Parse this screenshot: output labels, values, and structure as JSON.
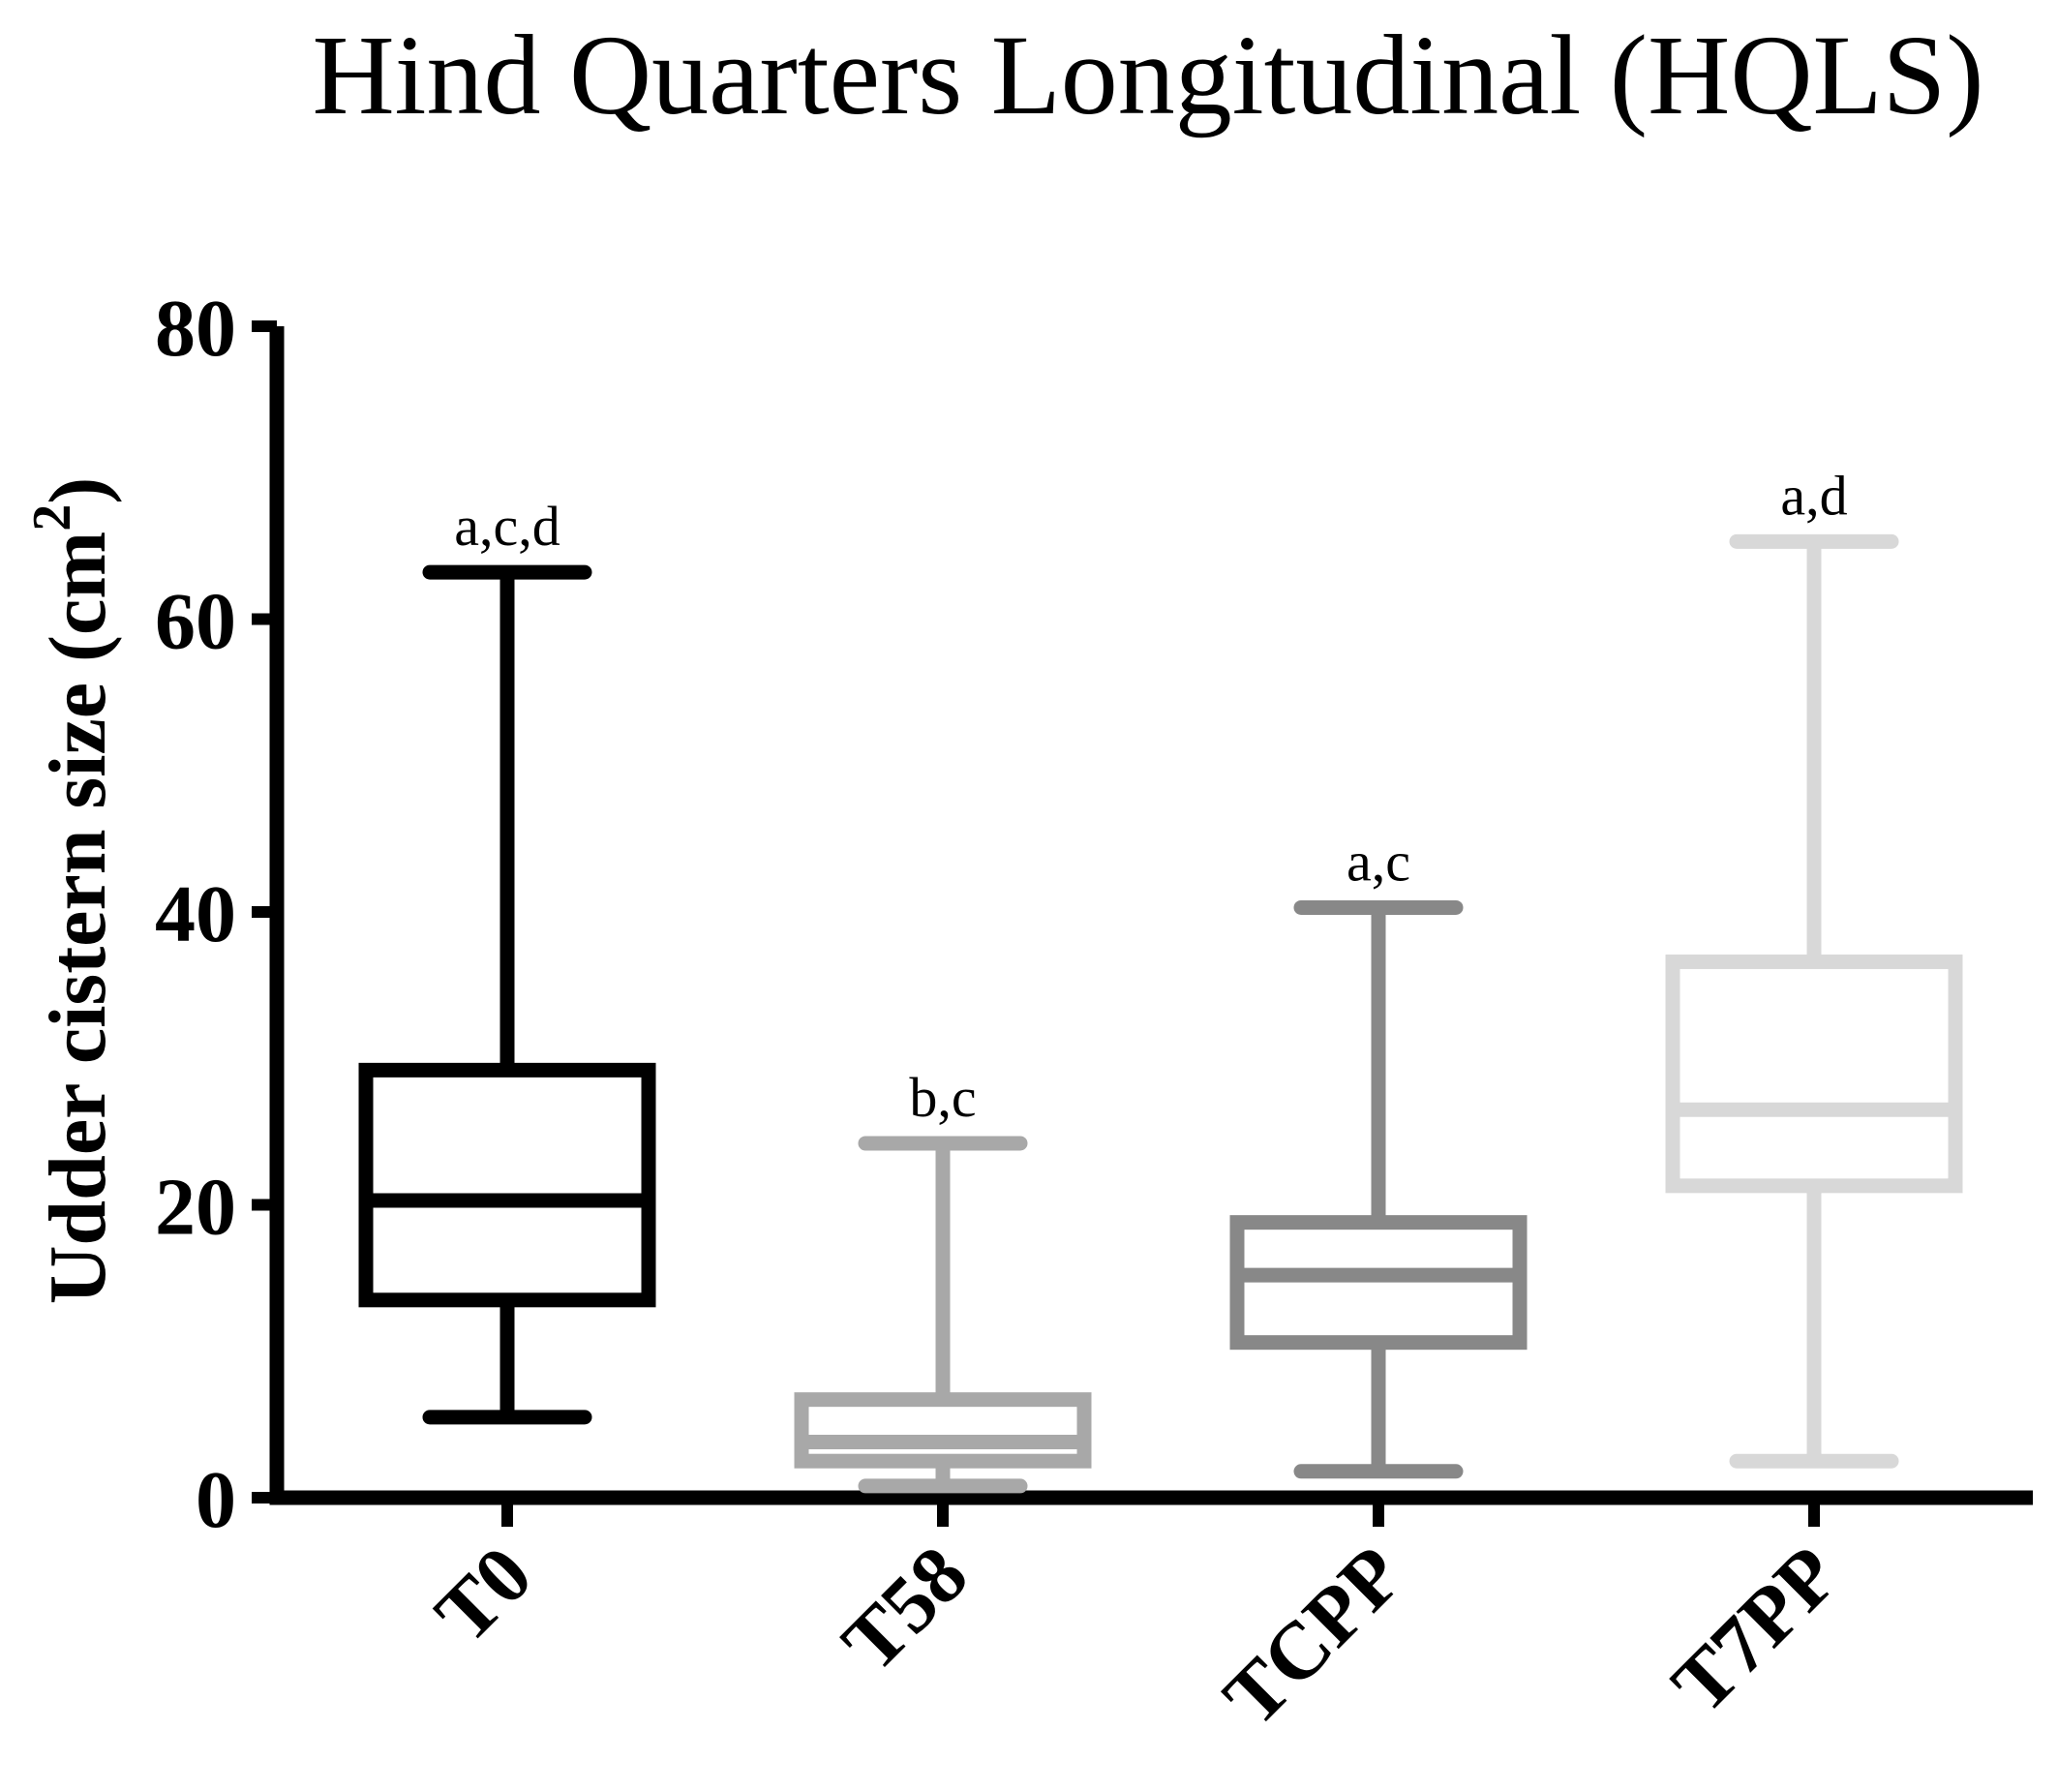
{
  "chart_data": {
    "type": "box",
    "title": "Hind Quarters Longitudinal (HQLS)",
    "ylabel": "Udder cistern size (cm",
    "ylabel_superscript": "2",
    "ylabel_close": ")",
    "xlabel": "",
    "ylim": [
      0,
      80
    ],
    "yticks": [
      0,
      20,
      40,
      60,
      80
    ],
    "categories": [
      "T0",
      "T58",
      "TCPP",
      "T7PP"
    ],
    "boxes": [
      {
        "category": "T0",
        "min": 5.5,
        "q1": 13.5,
        "median": 20.3,
        "q3": 29.2,
        "max": 63.2,
        "annotation": "a,c,d",
        "color": "#000000"
      },
      {
        "category": "T58",
        "min": 0.8,
        "q1": 2.5,
        "median": 3.8,
        "q3": 6.7,
        "max": 24.2,
        "annotation": "b,c",
        "color": "#a8a8a8"
      },
      {
        "category": "TCPP",
        "min": 1.8,
        "q1": 10.6,
        "median": 15.2,
        "q3": 18.8,
        "max": 40.3,
        "annotation": "a,c",
        "color": "#888888"
      },
      {
        "category": "T7PP",
        "min": 2.5,
        "q1": 21.3,
        "median": 26.5,
        "q3": 36.6,
        "max": 65.3,
        "annotation": "a,d",
        "color": "#d8d8d8"
      }
    ],
    "grid": false,
    "legend": "none"
  }
}
